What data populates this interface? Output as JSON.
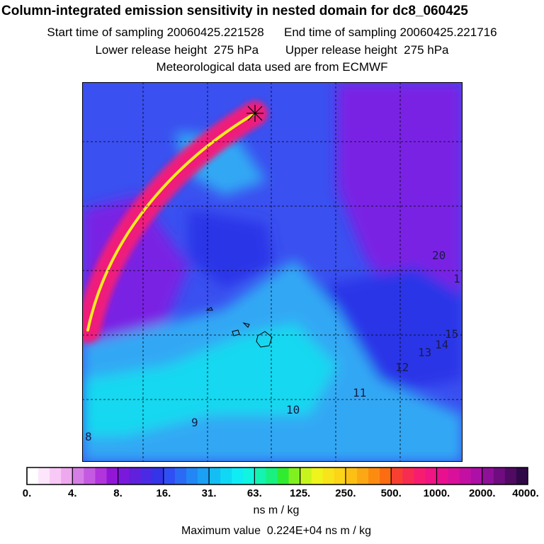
{
  "title": "Column-integrated emission sensitivity in nested domain for dc8_060425",
  "subtitle": {
    "start_label": "Start time of sampling",
    "start_value": "20060425.221528",
    "end_label": "End time of sampling",
    "end_value": "20060425.221716",
    "lower_label": "Lower release height",
    "lower_value": "275 hPa",
    "upper_label": "Upper release height",
    "upper_value": "275 hPa",
    "met_text": "Meteorological data used are from ECMWF"
  },
  "contour_labels": [
    "8",
    "9",
    "10",
    "11",
    "12",
    "13",
    "14",
    "15",
    "1",
    "20"
  ],
  "colorbar": {
    "labels": [
      "0.",
      "4.",
      "8.",
      "16.",
      "31.",
      "63.",
      "125.",
      "250.",
      "500.",
      "1000.",
      "2000.",
      "4000."
    ],
    "colors": [
      "#ffffff",
      "#fde6fb",
      "#f8c8f6",
      "#eda8ee",
      "#d57ee6",
      "#c55ae2",
      "#b234dc",
      "#9216d6",
      "#7a18dc",
      "#6020dc",
      "#4a2ae4",
      "#3434e8",
      "#2f4ef4",
      "#2a6af4",
      "#2286f4",
      "#1aa0f4",
      "#14bef4",
      "#10d8f4",
      "#10ecf4",
      "#10f4e0",
      "#14f4b0",
      "#18f080",
      "#30ec30",
      "#80f020",
      "#c8f41e",
      "#eef41c",
      "#f8e41a",
      "#fcd418",
      "#fcc014",
      "#fca814",
      "#fc8c10",
      "#fc6c10",
      "#f84030",
      "#f82c50",
      "#f81c70",
      "#f01484",
      "#e8108e",
      "#d8109a",
      "#c410a2",
      "#ac10a6",
      "#8e1098",
      "#6e0c80",
      "#500a62",
      "#300848"
    ],
    "units": "ns m / kg",
    "max_label": "Maximum value",
    "max_value": "0.224E+04 ns m / kg"
  },
  "colors": {
    "background_blue": "#3a50f0",
    "deep_blue": "#2c34e8",
    "purple": "#7a20e4",
    "light_blue": "#30a8f4",
    "cyan": "#18d8f0",
    "plume_outer": "#f01c7c",
    "plume_inner": "#f8ec20"
  }
}
